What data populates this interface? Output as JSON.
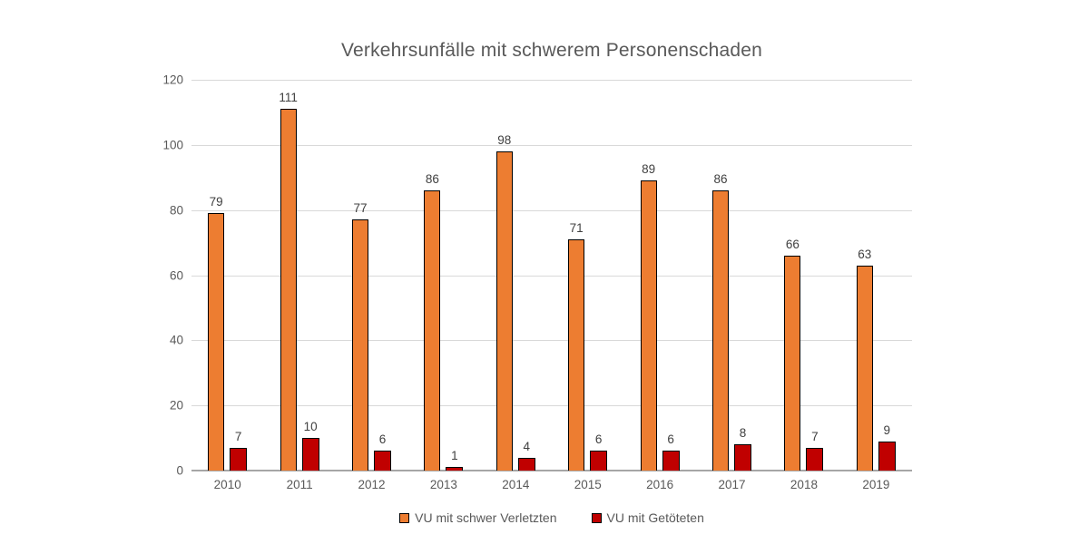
{
  "chart_data": {
    "type": "bar",
    "title": "Verkehrsunfälle mit schwerem Personenschaden",
    "categories": [
      "2010",
      "2011",
      "2012",
      "2013",
      "2014",
      "2015",
      "2016",
      "2017",
      "2018",
      "2019"
    ],
    "series": [
      {
        "name": "VU mit schwer Verletzten",
        "color": "#ED7D31",
        "values": [
          79,
          111,
          77,
          86,
          98,
          71,
          89,
          86,
          66,
          63
        ]
      },
      {
        "name": "VU mit Getöteten",
        "color": "#C00000",
        "values": [
          7,
          10,
          6,
          1,
          4,
          6,
          6,
          8,
          7,
          9
        ]
      }
    ],
    "xlabel": "",
    "ylabel": "",
    "ylim": [
      0,
      120
    ],
    "ytick_step": 20,
    "grid": true,
    "legend_position": "bottom",
    "colors": {
      "gridline": "#D9D9D9",
      "axis_line": "#A6A6A6",
      "axis_text": "#595959",
      "title_text": "#595959",
      "data_label_text": "#404040",
      "bar_border": "#000000",
      "background": "#FFFFFF"
    }
  }
}
